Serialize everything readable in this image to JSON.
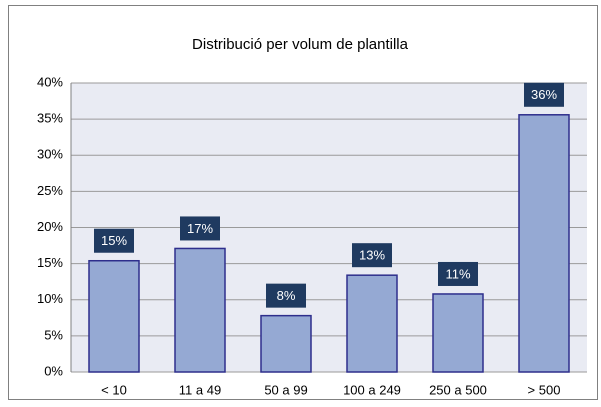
{
  "chart_data": {
    "type": "bar",
    "title": "Distribució per volum de plantilla",
    "categories": [
      "< 10",
      "11 a 49",
      "50 a 99",
      "100 a 249",
      "250 a 500",
      "> 500"
    ],
    "values": [
      15.4,
      17.1,
      7.8,
      13.4,
      10.8,
      35.6
    ],
    "value_labels": [
      "15%",
      "17%",
      "8%",
      "13%",
      "11%",
      "36%"
    ],
    "color": "#95a9d3",
    "ylim": [
      0,
      40
    ],
    "yticks": [
      {
        "value": 0,
        "label": "0%"
      },
      {
        "value": 5,
        "label": "5%"
      },
      {
        "value": 10,
        "label": "10%"
      },
      {
        "value": 15,
        "label": "15%"
      },
      {
        "value": 20,
        "label": "20%"
      },
      {
        "value": 25,
        "label": "25%"
      },
      {
        "value": 30,
        "label": "30%"
      },
      {
        "value": 35,
        "label": "35%"
      },
      {
        "value": 40,
        "label": "40%"
      }
    ],
    "grid": true
  }
}
